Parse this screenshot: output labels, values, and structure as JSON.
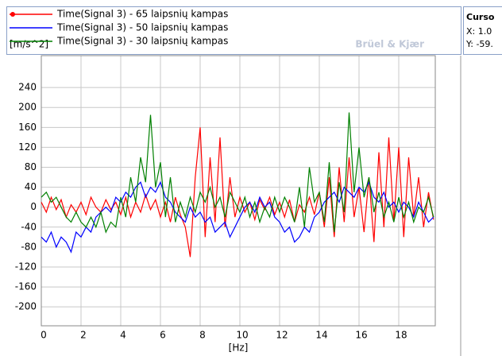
{
  "chart_data": {
    "type": "line",
    "y_label": "[m/s^2]",
    "x_label": "[Hz]",
    "watermark": "Brüel & Kjær",
    "cursor_panel": {
      "title": "Curso",
      "x_text": "X: 1.0",
      "y_text": "Y: -59."
    },
    "x": [
      0,
      0.25,
      0.5,
      0.75,
      1,
      1.25,
      1.5,
      1.75,
      2,
      2.25,
      2.5,
      2.75,
      3,
      3.25,
      3.5,
      3.75,
      4,
      4.25,
      4.5,
      4.75,
      5,
      5.25,
      5.5,
      5.75,
      6,
      6.25,
      6.5,
      6.75,
      7,
      7.25,
      7.5,
      7.75,
      8,
      8.25,
      8.5,
      8.75,
      9,
      9.25,
      9.5,
      9.75,
      10,
      10.25,
      10.5,
      10.75,
      11,
      11.25,
      11.5,
      11.75,
      12,
      12.25,
      12.5,
      12.75,
      13,
      13.25,
      13.5,
      13.75,
      14,
      14.25,
      14.5,
      14.75,
      15,
      15.25,
      15.5,
      15.75,
      16,
      16.25,
      16.5,
      16.75,
      17,
      17.25,
      17.5,
      17.75,
      18,
      18.25,
      18.5,
      18.75,
      19,
      19.25,
      19.5,
      19.75
    ],
    "series": [
      {
        "name": "Time(Signal 3) - 65 laipsnių kampas",
        "color": "#ff0000",
        "values": [
          10,
          -10,
          20,
          -5,
          15,
          -20,
          5,
          -10,
          10,
          -15,
          20,
          0,
          -10,
          15,
          -5,
          10,
          -15,
          20,
          -20,
          10,
          -10,
          25,
          -5,
          15,
          -20,
          10,
          -30,
          20,
          -15,
          -40,
          -100,
          60,
          160,
          -60,
          100,
          -30,
          140,
          -40,
          60,
          -20,
          20,
          -10,
          10,
          -25,
          15,
          -5,
          20,
          -15,
          10,
          -20,
          15,
          -30,
          5,
          -10,
          20,
          -15,
          30,
          -40,
          60,
          -60,
          80,
          -30,
          100,
          -20,
          40,
          -50,
          60,
          -70,
          110,
          -40,
          140,
          -30,
          120,
          -60,
          100,
          -20,
          60,
          -40,
          30,
          -25
        ]
      },
      {
        "name": "Time(Signal 3) - 50 laipsnių kampas",
        "color": "#0000ff",
        "values": [
          -60,
          -70,
          -50,
          -80,
          -60,
          -70,
          -90,
          -50,
          -60,
          -40,
          -50,
          -20,
          -10,
          0,
          -10,
          20,
          10,
          30,
          20,
          40,
          50,
          20,
          40,
          30,
          50,
          20,
          10,
          -10,
          -20,
          -30,
          0,
          -20,
          -10,
          -30,
          -20,
          -50,
          -40,
          -30,
          -60,
          -40,
          -20,
          0,
          10,
          -10,
          20,
          0,
          10,
          -20,
          -30,
          -50,
          -40,
          -70,
          -60,
          -40,
          -50,
          -20,
          -10,
          10,
          20,
          30,
          10,
          40,
          30,
          20,
          40,
          30,
          50,
          20,
          10,
          30,
          0,
          10,
          -10,
          10,
          0,
          -20,
          10,
          -10,
          -30,
          -20
        ]
      },
      {
        "name": "Time(Signal 3) - 30 laipsnių kampas",
        "color": "#008000",
        "values": [
          20,
          30,
          10,
          20,
          0,
          -20,
          -30,
          -10,
          -30,
          -40,
          -20,
          -40,
          -10,
          -50,
          -30,
          -40,
          20,
          -20,
          60,
          10,
          100,
          50,
          185,
          40,
          90,
          -20,
          60,
          -30,
          10,
          -20,
          20,
          -10,
          30,
          10,
          40,
          0,
          20,
          -20,
          30,
          10,
          -10,
          20,
          -20,
          10,
          -30,
          0,
          -20,
          20,
          -10,
          20,
          0,
          -30,
          40,
          -40,
          80,
          10,
          30,
          -30,
          90,
          -50,
          50,
          -10,
          190,
          30,
          120,
          20,
          60,
          -10,
          30,
          -20,
          10,
          -30,
          20,
          -20,
          10,
          -30,
          0,
          -10,
          20,
          -20
        ]
      }
    ],
    "xlim": [
      0,
      19.84
    ],
    "ylim": [
      -238,
      304
    ],
    "xticks": [
      0,
      2,
      4,
      6,
      8,
      10,
      12,
      14,
      16,
      18
    ],
    "yticks": [
      240,
      200,
      160,
      120,
      80,
      40,
      0,
      -40,
      -80,
      -120,
      -160,
      -200
    ],
    "grid": true
  }
}
